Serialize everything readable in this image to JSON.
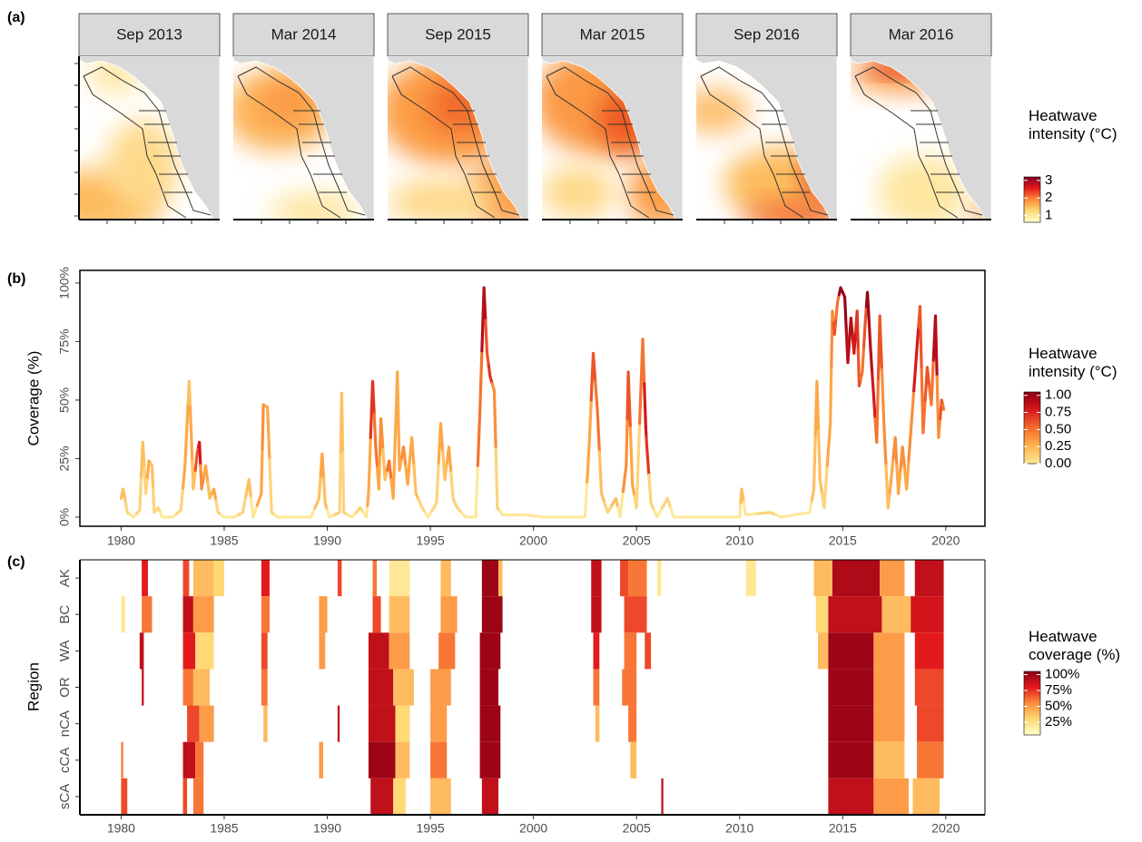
{
  "chart_data": [
    {
      "type": "map",
      "panel_label": "(a)",
      "facets": [
        "Sep 2013",
        "Mar 2014",
        "Sep 2015",
        "Mar 2015",
        "Sep 2016",
        "Mar 2016"
      ],
      "legend_title": "Heatwave intensity (°C)",
      "legend_lim": [
        0.6,
        3.2
      ],
      "legend_ticks": [
        1,
        2,
        3
      ],
      "colors": [
        "#ffffcc",
        "#fed976",
        "#fd8d3c",
        "#e31a1c",
        "#800026"
      ]
    },
    {
      "type": "line",
      "panel_label": "(b)",
      "y_label": "Coverage (%)",
      "x": [
        1980.0,
        1980.1,
        1980.3,
        1980.6,
        1980.9,
        1981.05,
        1981.2,
        1981.35,
        1981.5,
        1981.6,
        1981.8,
        1982.0,
        1982.5,
        1982.9,
        1983.1,
        1983.2,
        1983.3,
        1983.4,
        1983.5,
        1983.7,
        1983.8,
        1983.9,
        1984.1,
        1984.3,
        1984.5,
        1984.7,
        1985.0,
        1985.5,
        1985.9,
        1986.2,
        1986.4,
        1986.8,
        1986.9,
        1987.1,
        1987.3,
        1987.6,
        1988.5,
        1989.2,
        1989.6,
        1989.75,
        1989.9,
        1990.1,
        1990.6,
        1990.7,
        1990.8,
        1991.2,
        1991.6,
        1991.9,
        1992.0,
        1992.2,
        1992.35,
        1992.5,
        1992.6,
        1992.8,
        1993.0,
        1993.2,
        1993.4,
        1993.5,
        1993.7,
        1993.9,
        1994.1,
        1994.3,
        1994.6,
        1994.9,
        1995.3,
        1995.5,
        1995.7,
        1995.9,
        1996.1,
        1996.3,
        1996.7,
        1997.2,
        1997.4,
        1997.6,
        1997.75,
        1997.9,
        1998.1,
        1998.25,
        1998.5,
        1999.5,
        2000.5,
        2002.5,
        2002.7,
        2002.9,
        2003.1,
        2003.3,
        2003.6,
        2004.0,
        2004.2,
        2004.5,
        2004.6,
        2004.8,
        2005.0,
        2005.3,
        2005.45,
        2005.5,
        2005.7,
        2006.0,
        2006.5,
        2006.8,
        2010.0,
        2010.1,
        2010.3,
        2011.5,
        2012.0,
        2013.4,
        2013.6,
        2013.75,
        2013.9,
        2014.1,
        2014.4,
        2014.5,
        2014.6,
        2014.75,
        2014.9,
        2015.1,
        2015.25,
        2015.4,
        2015.55,
        2015.7,
        2015.8,
        2015.95,
        2016.1,
        2016.2,
        2016.35,
        2016.5,
        2016.65,
        2016.8,
        2017.0,
        2017.2,
        2017.35,
        2017.55,
        2017.7,
        2017.9,
        2018.1,
        2018.3,
        2018.6,
        2018.75,
        2018.9,
        2019.1,
        2019.3,
        2019.5,
        2019.65,
        2019.8,
        2019.9
      ],
      "values": [
        8,
        12,
        2,
        0,
        3,
        32,
        10,
        24,
        22,
        2,
        4,
        0,
        0,
        3,
        22,
        40,
        58,
        36,
        12,
        28,
        32,
        12,
        22,
        8,
        12,
        2,
        0,
        0,
        2,
        16,
        0,
        10,
        48,
        47,
        2,
        0,
        0,
        0,
        8,
        27,
        6,
        0,
        2,
        53,
        2,
        0,
        4,
        0,
        10,
        58,
        30,
        12,
        42,
        16,
        24,
        8,
        62,
        20,
        30,
        14,
        34,
        10,
        4,
        0,
        6,
        40,
        16,
        30,
        8,
        4,
        0,
        0,
        44,
        98,
        70,
        60,
        54,
        4,
        1,
        1,
        0,
        0,
        30,
        70,
        46,
        10,
        2,
        8,
        0,
        22,
        62,
        14,
        4,
        76,
        38,
        30,
        6,
        0,
        8,
        0,
        0,
        12,
        1,
        2,
        0,
        2,
        12,
        58,
        16,
        4,
        40,
        88,
        78,
        92,
        98,
        94,
        66,
        85,
        70,
        88,
        56,
        62,
        84,
        96,
        72,
        52,
        32,
        86,
        40,
        4,
        16,
        34,
        10,
        30,
        12,
        36,
        72,
        90,
        36,
        64,
        48,
        86,
        34,
        50,
        46
      ],
      "intensity": [
        0.2,
        0.2,
        0.1,
        0,
        0.1,
        0.2,
        0.1,
        0.3,
        0.2,
        0.1,
        0.1,
        0,
        0,
        0.1,
        0.3,
        0.3,
        0.2,
        0.3,
        0.2,
        0.6,
        0.8,
        0.4,
        0.3,
        0.2,
        0.3,
        0.1,
        0,
        0,
        0.1,
        0.2,
        0,
        0.3,
        0.4,
        0.3,
        0.1,
        0,
        0,
        0,
        0.2,
        0.3,
        0.2,
        0,
        0.1,
        0.2,
        0.1,
        0,
        0.1,
        0,
        0.3,
        0.7,
        0.5,
        0.3,
        0.4,
        0.2,
        0.5,
        0.3,
        0.3,
        0.3,
        0.4,
        0.3,
        0.3,
        0.2,
        0.1,
        0,
        0.1,
        0.3,
        0.2,
        0.3,
        0.1,
        0.1,
        0,
        0,
        0.5,
        0.9,
        0.6,
        0.7,
        0.4,
        0.1,
        0,
        0,
        0,
        0,
        0.3,
        0.6,
        0.5,
        0.2,
        0.1,
        0.2,
        0,
        0.4,
        0.6,
        0.3,
        0.1,
        0.5,
        0.8,
        0.7,
        0.1,
        0,
        0.1,
        0,
        0,
        0.2,
        0,
        0.1,
        0,
        0,
        0.2,
        0.3,
        0.2,
        0.1,
        0.3,
        0.4,
        0.6,
        0.5,
        1.0,
        1.0,
        0.9,
        0.9,
        0.8,
        0.7,
        0.6,
        0.5,
        0.6,
        1.0,
        0.9,
        0.8,
        0.5,
        0.6,
        0.4,
        0.2,
        0.3,
        0.4,
        0.3,
        0.4,
        0.3,
        0.4,
        0.8,
        0.6,
        0.5,
        0.6,
        0.5,
        0.9,
        0.4,
        0.6,
        0.5
      ],
      "xlim": [
        1978,
        2021.9
      ],
      "xticks": [
        1980,
        1985,
        1990,
        1995,
        2000,
        2005,
        2010,
        2015,
        2020
      ],
      "ylim": [
        -3.9,
        105.4
      ],
      "yticks": [
        {
          "value": 0,
          "label": "0%"
        },
        {
          "value": 25,
          "label": "25%"
        },
        {
          "value": 50,
          "label": "50%"
        },
        {
          "value": 75,
          "label": "75%"
        },
        {
          "value": 100,
          "label": "100%"
        }
      ],
      "legend_title": "Heatwave intensity (°C)",
      "legend_lim": [
        0,
        1.05
      ],
      "legend_ticks": [
        {
          "value": 0,
          "label": "0.00"
        },
        {
          "value": 0.25,
          "label": "0.25"
        },
        {
          "value": 0.5,
          "label": "0.50"
        },
        {
          "value": 0.75,
          "label": "0.75"
        },
        {
          "value": 1,
          "label": "1.00"
        }
      ],
      "colors": [
        "#fde89a",
        "#feb24c",
        "#f46d2c",
        "#d7191c",
        "#8b0016"
      ]
    },
    {
      "type": "heatmap",
      "panel_label": "(c)",
      "y_label": "Region",
      "xlim": [
        1978,
        2021.9
      ],
      "xticks": [
        1980,
        1985,
        1990,
        1995,
        2000,
        2005,
        2010,
        2015,
        2020
      ],
      "series": [
        {
          "name": "AK",
          "starts": [
            1981.0,
            1983.0,
            1983.5,
            1984.5,
            1986.8,
            1990.5,
            1992.2,
            1993.0,
            1995.5,
            1997.5,
            1998.3,
            2002.8,
            2004.2,
            2004.6,
            2006.0,
            2010.3,
            2013.6,
            2014.5,
            2016.8,
            2018.5
          ],
          "ends": [
            1981.3,
            1983.3,
            1984.5,
            1985.0,
            1987.2,
            1990.7,
            1992.4,
            1994.0,
            1996.0,
            1998.3,
            1998.5,
            2003.3,
            2004.6,
            2005.5,
            2006.2,
            2010.8,
            2014.5,
            2016.8,
            2018.0,
            2019.9
          ],
          "values": [
            80,
            70,
            40,
            30,
            80,
            70,
            60,
            20,
            40,
            100,
            40,
            90,
            70,
            60,
            20,
            20,
            40,
            95,
            50,
            90
          ]
        },
        {
          "name": "BC",
          "starts": [
            1980.0,
            1981.0,
            1983.0,
            1983.5,
            1986.8,
            1989.6,
            1992.2,
            1993.0,
            1995.5,
            1997.5,
            2002.8,
            2004.4,
            2013.7,
            2014.3,
            2016.9,
            2018.3
          ],
          "ends": [
            1980.2,
            1981.5,
            1983.5,
            1984.5,
            1987.2,
            1990.0,
            1992.6,
            1994.0,
            1996.3,
            1998.5,
            2003.3,
            2005.5,
            2014.3,
            2016.9,
            2018.3,
            2019.9
          ],
          "values": [
            20,
            60,
            90,
            50,
            60,
            50,
            70,
            40,
            50,
            100,
            90,
            70,
            30,
            90,
            40,
            85
          ]
        },
        {
          "name": "WA",
          "starts": [
            1980.9,
            1983.0,
            1983.6,
            1986.8,
            1989.6,
            1992.0,
            1993.0,
            1995.4,
            1997.4,
            2002.9,
            2004.4,
            2005.4,
            2013.8,
            2014.3,
            2016.5,
            2018.5
          ],
          "ends": [
            1981.1,
            1983.6,
            1984.5,
            1987.1,
            1989.9,
            1993.0,
            1994.0,
            1996.2,
            1998.4,
            2003.2,
            2005.0,
            2005.7,
            2014.3,
            2016.5,
            2018.0,
            2019.9
          ],
          "values": [
            90,
            80,
            30,
            70,
            50,
            90,
            50,
            60,
            100,
            80,
            60,
            70,
            40,
            100,
            50,
            80
          ]
        },
        {
          "name": "OR",
          "starts": [
            1981.0,
            1983.0,
            1983.5,
            1986.8,
            1992.0,
            1993.2,
            1995.0,
            1997.4,
            2002.9,
            2004.3,
            2014.3,
            2016.5,
            2018.5
          ],
          "ends": [
            1981.1,
            1983.5,
            1984.3,
            1987.1,
            1993.2,
            1994.2,
            1996.0,
            1998.3,
            2003.2,
            2005.0,
            2016.5,
            2018.0,
            2019.9
          ],
          "values": [
            90,
            60,
            40,
            60,
            90,
            40,
            50,
            100,
            60,
            60,
            100,
            50,
            70
          ]
        },
        {
          "name": "nCA",
          "starts": [
            1983.2,
            1983.8,
            1986.9,
            1990.5,
            1992.0,
            1993.3,
            1995.0,
            1997.4,
            2003.0,
            2004.6,
            2014.3,
            2016.5,
            2018.6
          ],
          "ends": [
            1983.8,
            1984.5,
            1987.1,
            1990.6,
            1993.3,
            1994.0,
            1995.8,
            1998.4,
            2003.2,
            2005.0,
            2016.5,
            2018.0,
            2019.9
          ],
          "values": [
            70,
            50,
            40,
            90,
            90,
            30,
            50,
            100,
            40,
            60,
            100,
            50,
            70
          ]
        },
        {
          "name": "cCA",
          "starts": [
            1980.0,
            1983.0,
            1983.6,
            1989.6,
            1992.0,
            1993.3,
            1995.0,
            1997.4,
            2004.7,
            2014.3,
            2016.5,
            2018.6
          ],
          "ends": [
            1980.1,
            1983.6,
            1984.0,
            1989.8,
            1993.3,
            1994.0,
            1995.8,
            1998.4,
            2005.0,
            2016.5,
            2018.0,
            2019.9
          ],
          "values": [
            60,
            90,
            60,
            50,
            100,
            40,
            60,
            100,
            40,
            100,
            40,
            60
          ]
        },
        {
          "name": "sCA",
          "starts": [
            1980.0,
            1983.0,
            1983.5,
            1992.1,
            1993.2,
            1995.0,
            1997.5,
            2006.2,
            2014.3,
            2016.5,
            2018.4
          ],
          "ends": [
            1980.3,
            1983.2,
            1984.0,
            1993.2,
            1993.8,
            1996.0,
            1998.3,
            2006.3,
            2016.5,
            2018.2,
            2019.7
          ],
          "values": [
            70,
            70,
            60,
            90,
            30,
            40,
            90,
            90,
            90,
            50,
            40
          ]
        }
      ],
      "legend_title": "Heatwave coverage (%)",
      "legend_lim": [
        5,
        105
      ],
      "legend_ticks": [
        {
          "value": 25,
          "label": "25%"
        },
        {
          "value": 50,
          "label": "50%"
        },
        {
          "value": 75,
          "label": "75%"
        },
        {
          "value": 100,
          "label": "100%"
        }
      ],
      "colors": [
        "#ffffcc",
        "#fed976",
        "#fd8d3c",
        "#e31a1c",
        "#8b0016"
      ]
    }
  ]
}
